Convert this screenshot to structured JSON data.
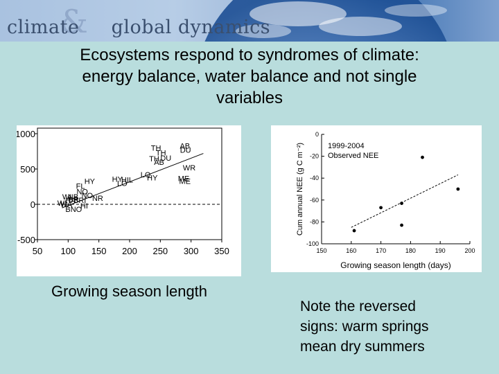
{
  "banner": {
    "word1": "climate",
    "ampersand": "&",
    "word2": "global dynamics"
  },
  "title": {
    "line1": "Ecosystems respond to syndromes of climate:",
    "line2": "energy balance, water balance and not single",
    "line3": "variables"
  },
  "xlabel": "Growing season length",
  "note": {
    "line1": "Note the reversed",
    "line2": "signs: warm springs",
    "line3": "mean dry summers"
  },
  "colors": {
    "background": "#b9dddd",
    "banner_text": "#3a4f6e",
    "plot_background": "#ffffff",
    "marks": "#000000"
  },
  "chart_data": [
    {
      "type": "scatter",
      "title": "",
      "xlabel": "Growing season length",
      "ylabel": "",
      "xlim": [
        50,
        350
      ],
      "ylim": [
        -500,
        1000
      ],
      "xticks": [
        50,
        100,
        150,
        200,
        250,
        300,
        350
      ],
      "yticks": [
        -500,
        0,
        500,
        1000
      ],
      "reference_line_y": 0,
      "fit_line": {
        "x": [
          90,
          320
        ],
        "y": -50,
        "y_end": 720
      },
      "points": [
        {
          "label": "TH",
          "x": 243,
          "y": 760
        },
        {
          "label": "TH",
          "x": 251,
          "y": 690
        },
        {
          "label": "TH",
          "x": 240,
          "y": 610
        },
        {
          "label": "AB",
          "x": 248,
          "y": 560
        },
        {
          "label": "DU",
          "x": 259,
          "y": 620
        },
        {
          "label": "AB",
          "x": 290,
          "y": 790
        },
        {
          "label": "DU",
          "x": 291,
          "y": 730
        },
        {
          "label": "WR",
          "x": 297,
          "y": 480
        },
        {
          "label": "ME",
          "x": 288,
          "y": 330
        },
        {
          "label": "ME",
          "x": 290,
          "y": 290
        },
        {
          "label": "LO",
          "x": 226,
          "y": 380
        },
        {
          "label": "HY",
          "x": 237,
          "y": 340
        },
        {
          "label": "HY",
          "x": 180,
          "y": 320
        },
        {
          "label": "HIL",
          "x": 196,
          "y": 310
        },
        {
          "label": "LO",
          "x": 188,
          "y": 260
        },
        {
          "label": "HY",
          "x": 135,
          "y": 290
        },
        {
          "label": "FL",
          "x": 120,
          "y": 220
        },
        {
          "label": "NO",
          "x": 123,
          "y": 140
        },
        {
          "label": "NO",
          "x": 131,
          "y": 90
        },
        {
          "label": "NR",
          "x": 148,
          "y": 50
        },
        {
          "label": "WI",
          "x": 98,
          "y": 70
        },
        {
          "label": "NB",
          "x": 108,
          "y": 70
        },
        {
          "label": "HA",
          "x": 104,
          "y": 20
        },
        {
          "label": "WI",
          "x": 90,
          "y": -20
        },
        {
          "label": "WA",
          "x": 97,
          "y": -40
        },
        {
          "label": "BR",
          "x": 109,
          "y": 30
        },
        {
          "label": "BRI",
          "x": 119,
          "y": 20
        },
        {
          "label": "BNO",
          "x": 109,
          "y": -110
        },
        {
          "label": "HI",
          "x": 126,
          "y": -60
        }
      ]
    },
    {
      "type": "scatter",
      "title": "1999-2004 Observed NEE",
      "xlabel": "Growing season length (days)",
      "ylabel": "Cum annual NEE (g C m⁻²)",
      "ylabel_base": "Cum annual NEE (g C m",
      "ylabel_exp": "-2",
      "xlim": [
        150,
        200
      ],
      "ylim": [
        -100,
        0
      ],
      "xticks": [
        150,
        160,
        170,
        180,
        190,
        200
      ],
      "yticks": [
        0,
        -20,
        -40,
        -60,
        -80,
        -100
      ],
      "points": [
        {
          "x": 161,
          "y": -88
        },
        {
          "x": 170,
          "y": -67
        },
        {
          "x": 177,
          "y": -63
        },
        {
          "x": 177,
          "y": -83
        },
        {
          "x": 184,
          "y": -21
        },
        {
          "x": 196,
          "y": -50
        }
      ],
      "fit_line": {
        "x": [
          160,
          196
        ],
        "y_start": -85,
        "y_end": -37
      }
    }
  ]
}
